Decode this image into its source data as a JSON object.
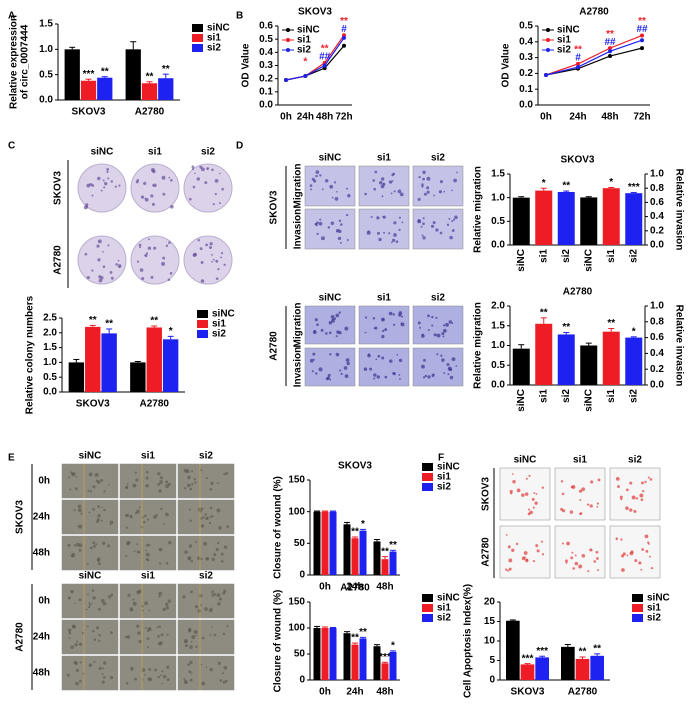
{
  "panels": [
    "A",
    "B",
    "C",
    "D",
    "E",
    "F"
  ],
  "photos": {
    "C": {
      "columns": [
        "siNC",
        "si1",
        "si2"
      ],
      "rows": [
        "SKOV3",
        "A2780"
      ]
    },
    "D_SKOV3": {
      "cell_line": "SKOV3",
      "columns": [
        "siNC",
        "si1",
        "si2"
      ],
      "rows": [
        "Migration",
        "Invasion"
      ]
    },
    "D_A2780": {
      "cell_line": "A2780",
      "columns": [
        "siNC",
        "si1",
        "si2"
      ],
      "rows": [
        "Migration",
        "Invasion"
      ]
    },
    "E_SKOV3": {
      "cell_line": "SKOV3",
      "columns": [
        "siNC",
        "si1",
        "si2"
      ],
      "rows": [
        "0h",
        "24h",
        "48h"
      ]
    },
    "E_A2780": {
      "cell_line": "A2780",
      "columns": [
        "siNC",
        "si1",
        "si2"
      ],
      "rows": [
        "0h",
        "24h",
        "48h"
      ]
    },
    "F": {
      "columns": [
        "siNC",
        "si1",
        "si2"
      ],
      "rows": [
        "SKOV3",
        "A2780"
      ]
    }
  },
  "chart_data": [
    {
      "type": "bar",
      "y_label": [
        "Relative  expression",
        "of circ_0007444"
      ],
      "categories": [
        "SKOV3",
        "A2780"
      ],
      "ylim": [
        0,
        1.5
      ],
      "yticks": [
        {
          "value": 0,
          "label": "0.0"
        },
        0.5,
        {
          "value": 1,
          "label": "1.0"
        },
        1.5
      ],
      "legend": "right",
      "series": [
        {
          "name": "siNC",
          "color": "#000000",
          "values": [
            1.0,
            1.0
          ],
          "errors": [
            0.04,
            0.15
          ],
          "sig": [
            null,
            null
          ]
        },
        {
          "name": "si1",
          "color": "#ee1c25",
          "values": [
            0.38,
            0.33
          ],
          "errors": [
            0.03,
            0.03
          ],
          "sig": [
            "***",
            "**"
          ]
        },
        {
          "name": "si2",
          "color": "#1e22f0",
          "values": [
            0.44,
            0.43
          ],
          "errors": [
            0.02,
            0.08
          ],
          "sig": [
            "**",
            "**"
          ]
        }
      ]
    },
    {
      "type": "line",
      "title": "SKOV3",
      "y_label": "OD Value",
      "categories": [
        "0h",
        "24h",
        "48h",
        "72h"
      ],
      "ylim": [
        0,
        0.6
      ],
      "yticks": [
        {
          "value": 0,
          "label": "0.0"
        },
        0.1,
        0.2,
        0.3,
        0.4,
        0.5,
        0.6
      ],
      "legend": "upper left",
      "series": [
        {
          "name": "siNC",
          "color": "#000000",
          "values": [
            0.19,
            0.22,
            0.28,
            0.45
          ],
          "sig": [
            null,
            null,
            null,
            null
          ]
        },
        {
          "name": "si1",
          "color": "#ee1c25",
          "values": [
            0.19,
            0.22,
            0.32,
            0.53
          ],
          "sig": [
            null,
            "*",
            "**",
            "**"
          ]
        },
        {
          "name": "si2",
          "color": "#1e22f0",
          "values": [
            0.19,
            0.22,
            0.3,
            0.51
          ],
          "sig": [
            null,
            null,
            "##",
            "#"
          ]
        }
      ]
    },
    {
      "type": "line",
      "title": "A2780",
      "y_label": "OD Value",
      "categories": [
        "0h",
        "24h",
        "48h",
        "72h"
      ],
      "ylim": [
        0,
        0.5
      ],
      "yticks": [
        {
          "value": 0,
          "label": "0.0"
        },
        0.1,
        0.2,
        0.3,
        0.4,
        0.5
      ],
      "legend": "upper left",
      "series": [
        {
          "name": "siNC",
          "color": "#000000",
          "values": [
            0.19,
            0.23,
            0.31,
            0.36
          ],
          "sig": [
            null,
            null,
            null,
            null
          ]
        },
        {
          "name": "si1",
          "color": "#ee1c25",
          "values": [
            0.19,
            0.26,
            0.36,
            0.44
          ],
          "sig": [
            null,
            "**",
            "**",
            "**"
          ]
        },
        {
          "name": "si2",
          "color": "#1e22f0",
          "values": [
            0.19,
            0.24,
            0.34,
            0.41
          ],
          "sig": [
            null,
            "#",
            "##",
            "##"
          ]
        }
      ]
    },
    {
      "type": "bar",
      "y_label": "Relative colony numbers",
      "categories": [
        "SKOV3",
        "A2780"
      ],
      "ylim": [
        0,
        2.5
      ],
      "yticks": [
        {
          "value": 0,
          "label": "0.0"
        },
        0.5,
        {
          "value": 1,
          "label": "1.0"
        },
        1.5,
        {
          "value": 2,
          "label": "2.0"
        },
        2.5
      ],
      "legend": "right",
      "series": [
        {
          "name": "siNC",
          "color": "#000000",
          "values": [
            1.0,
            1.0
          ],
          "errors": [
            0.1,
            0.03
          ],
          "sig": [
            null,
            null
          ]
        },
        {
          "name": "si1",
          "color": "#ee1c25",
          "values": [
            2.2,
            2.18
          ],
          "errors": [
            0.05,
            0.05
          ],
          "sig": [
            "**",
            "**"
          ]
        },
        {
          "name": "si2",
          "color": "#1e22f0",
          "values": [
            1.98,
            1.78
          ],
          "errors": [
            0.15,
            0.1
          ],
          "sig": [
            "**",
            "*"
          ]
        }
      ]
    },
    {
      "type": "bar",
      "title": "SKOV3",
      "y_label": "Relative migration",
      "y2_label": "Relative invasion",
      "categories": [
        "siNC",
        "si1",
        "si2",
        "siNC",
        "si1",
        "si2"
      ],
      "ylim": [
        0,
        1.5
      ],
      "yticks": [
        {
          "value": 0,
          "label": "0.0"
        },
        0.5,
        {
          "value": 1,
          "label": "1.0"
        },
        1.5
      ],
      "y2lim": [
        0,
        1
      ],
      "y2ticks": [
        {
          "value": 0,
          "label": "0.0"
        },
        0.2,
        0.4,
        0.6,
        0.8,
        {
          "value": 1,
          "label": "1.0"
        }
      ],
      "series": [
        {
          "colors": [
            "#000000",
            "#ee1c25",
            "#1e22f0",
            "#000000",
            "#ee1c25",
            "#1e22f0"
          ],
          "values": [
            1.0,
            1.15,
            1.12,
            null,
            null,
            null
          ],
          "errors": [
            0.02,
            0.05,
            0.02,
            null,
            null,
            null
          ],
          "sig": [
            null,
            "*",
            "**",
            null,
            null,
            null
          ]
        },
        {
          "axis": "y2",
          "colors": [
            "#000000",
            "#ee1c25",
            "#1e22f0",
            "#000000",
            "#ee1c25",
            "#1e22f0"
          ],
          "values": [
            null,
            null,
            null,
            0.67,
            0.8,
            0.73
          ],
          "errors": [
            null,
            null,
            null,
            0.01,
            0.01,
            0.01
          ],
          "sig": [
            null,
            null,
            null,
            null,
            "*",
            "***"
          ]
        }
      ]
    },
    {
      "type": "bar",
      "title": "A2780",
      "y_label": "Relative migration",
      "y2_label": "Relative invasion",
      "categories": [
        "siNC",
        "si1",
        "si2",
        "siNC",
        "si1",
        "si2"
      ],
      "ylim": [
        0,
        2
      ],
      "yticks": [
        {
          "value": 0,
          "label": "0.0"
        },
        0.5,
        {
          "value": 1,
          "label": "1.0"
        },
        1.5,
        {
          "value": 2,
          "label": "2.0"
        }
      ],
      "y2lim": [
        0,
        1
      ],
      "y2ticks": [
        {
          "value": 0,
          "label": "0.0"
        },
        0.2,
        0.4,
        0.6,
        0.8,
        {
          "value": 1,
          "label": "1.0"
        }
      ],
      "series": [
        {
          "colors": [
            "#000000",
            "#ee1c25",
            "#1e22f0",
            "#000000",
            "#ee1c25",
            "#1e22f0"
          ],
          "values": [
            0.92,
            1.55,
            1.28,
            null,
            null,
            null
          ],
          "errors": [
            0.1,
            0.15,
            0.05,
            null,
            null,
            null
          ],
          "sig": [
            null,
            "**",
            "**",
            null,
            null,
            null
          ]
        },
        {
          "axis": "y2",
          "colors": [
            "#000000",
            "#ee1c25",
            "#1e22f0",
            "#000000",
            "#ee1c25",
            "#1e22f0"
          ],
          "values": [
            null,
            null,
            null,
            0.5,
            0.675,
            0.6
          ],
          "errors": [
            null,
            null,
            null,
            0.03,
            0.04,
            0.01
          ],
          "sig": [
            null,
            null,
            null,
            null,
            "**",
            "*"
          ]
        }
      ]
    },
    {
      "type": "bar",
      "title": "SKOV3",
      "y_label": "Closure of wound (%)",
      "categories": [
        "0h",
        "24h",
        "48h"
      ],
      "ylim": [
        0,
        150
      ],
      "yticks": [
        0,
        50,
        100,
        150
      ],
      "legend": "right",
      "series": [
        {
          "name": "siNC",
          "color": "#000000",
          "values": [
            100,
            80,
            53
          ],
          "errors": [
            1,
            3,
            3
          ],
          "sig": [
            null,
            null,
            null
          ]
        },
        {
          "name": "si1",
          "color": "#ee1c25",
          "values": [
            100,
            58,
            25
          ],
          "errors": [
            1,
            2,
            4
          ],
          "sig": [
            null,
            "**",
            "**"
          ]
        },
        {
          "name": "si2",
          "color": "#1e22f0",
          "values": [
            100,
            70,
            37
          ],
          "errors": [
            1,
            2,
            2
          ],
          "sig": [
            null,
            "*",
            "**"
          ]
        }
      ]
    },
    {
      "type": "bar",
      "title": "A2780",
      "y_label": "Closure of wound (%)",
      "categories": [
        "0h",
        "24h",
        "48h"
      ],
      "ylim": [
        0,
        150
      ],
      "yticks": [
        0,
        50,
        100,
        150
      ],
      "legend": "right",
      "series": [
        {
          "name": "siNC",
          "color": "#000000",
          "values": [
            100,
            90,
            65
          ],
          "errors": [
            3,
            3,
            3
          ],
          "sig": [
            null,
            null,
            null
          ]
        },
        {
          "name": "si1",
          "color": "#ee1c25",
          "values": [
            100,
            68,
            32
          ],
          "errors": [
            2,
            3,
            2
          ],
          "sig": [
            null,
            "**",
            "***"
          ]
        },
        {
          "name": "si2",
          "color": "#1e22f0",
          "values": [
            100,
            80,
            54
          ],
          "errors": [
            1,
            2,
            2
          ],
          "sig": [
            null,
            "**",
            "*"
          ]
        }
      ]
    },
    {
      "type": "bar",
      "y_label": "Cell Apoptosis Index(%)",
      "categories": [
        "SKOV3",
        "A2780"
      ],
      "ylim": [
        0,
        20
      ],
      "yticks": [
        0,
        5,
        10,
        15,
        20
      ],
      "legend": "right",
      "series": [
        {
          "name": "siNC",
          "color": "#000000",
          "values": [
            15.2,
            8.5
          ],
          "errors": [
            0.2,
            0.6
          ],
          "sig": [
            null,
            null
          ]
        },
        {
          "name": "si1",
          "color": "#ee1c25",
          "values": [
            4.0,
            5.4
          ],
          "errors": [
            0.2,
            0.5
          ],
          "sig": [
            "***",
            "**"
          ]
        },
        {
          "name": "si2",
          "color": "#1e22f0",
          "values": [
            5.8,
            6.2
          ],
          "errors": [
            0.3,
            0.5
          ],
          "sig": [
            "***",
            "**"
          ]
        }
      ]
    }
  ]
}
